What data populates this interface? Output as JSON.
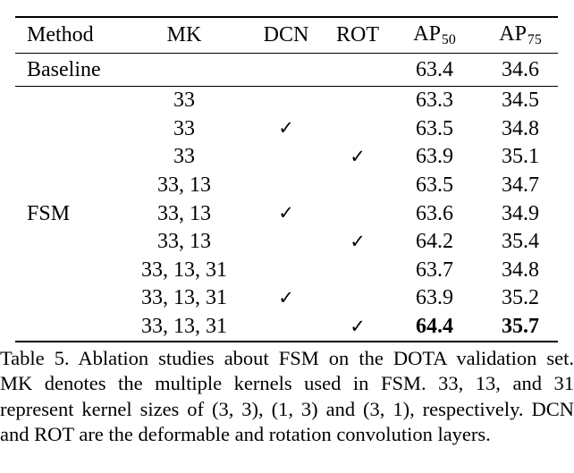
{
  "page": {
    "background": "#ffffff",
    "text_color": "#000000"
  },
  "table": {
    "checkmark": "✓",
    "columns": [
      {
        "label": "Method"
      },
      {
        "label": "MK"
      },
      {
        "label": "DCN"
      },
      {
        "label": "ROT"
      },
      {
        "label": "AP",
        "sub": "50"
      },
      {
        "label": "AP",
        "sub": "75"
      }
    ],
    "rows": [
      {
        "method": "Baseline",
        "mk": "",
        "dcn": false,
        "rot": false,
        "ap50": "63.4",
        "ap75": "34.6",
        "section": "baseline",
        "bold": false
      },
      {
        "method": "",
        "mk": "33",
        "dcn": false,
        "rot": false,
        "ap50": "63.3",
        "ap75": "34.5",
        "section": "fsm",
        "bold": false
      },
      {
        "method": "",
        "mk": "33",
        "dcn": true,
        "rot": false,
        "ap50": "63.5",
        "ap75": "34.8",
        "section": "fsm",
        "bold": false
      },
      {
        "method": "",
        "mk": "33",
        "dcn": false,
        "rot": true,
        "ap50": "63.9",
        "ap75": "35.1",
        "section": "fsm",
        "bold": false
      },
      {
        "method": "",
        "mk": "33, 13",
        "dcn": false,
        "rot": false,
        "ap50": "63.5",
        "ap75": "34.7",
        "section": "fsm",
        "bold": false
      },
      {
        "method": "FSM",
        "mk": "33, 13",
        "dcn": true,
        "rot": false,
        "ap50": "63.6",
        "ap75": "34.9",
        "section": "fsm",
        "bold": false
      },
      {
        "method": "",
        "mk": "33, 13",
        "dcn": false,
        "rot": true,
        "ap50": "64.2",
        "ap75": "35.4",
        "section": "fsm",
        "bold": false
      },
      {
        "method": "",
        "mk": "33, 13, 31",
        "dcn": false,
        "rot": false,
        "ap50": "63.7",
        "ap75": "34.8",
        "section": "fsm",
        "bold": false
      },
      {
        "method": "",
        "mk": "33, 13, 31",
        "dcn": true,
        "rot": false,
        "ap50": "63.9",
        "ap75": "35.2",
        "section": "fsm",
        "bold": false
      },
      {
        "method": "",
        "mk": "33, 13, 31",
        "dcn": false,
        "rot": true,
        "ap50": "64.4",
        "ap75": "35.7",
        "section": "fsm",
        "bold": true
      }
    ]
  },
  "caption": {
    "lines": [
      "Table 5. Ablation studies about FSM on the DOTA validation set.",
      "MK denotes the multiple kernels used in FSM. 33, 13, and 31",
      "represent kernel sizes of (3, 3), (1, 3) and (3, 1), respectively. DCN",
      "and ROT are the deformable and rotation convolution layers."
    ]
  }
}
